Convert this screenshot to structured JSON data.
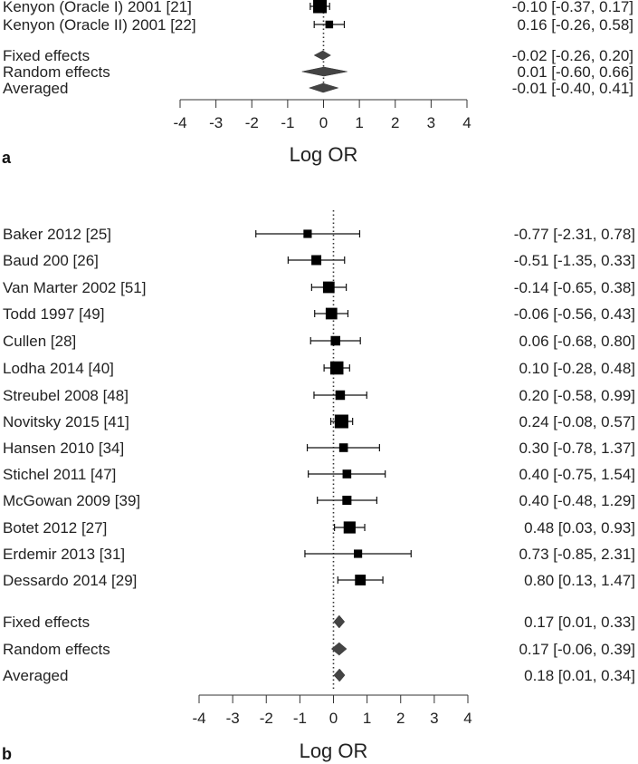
{
  "chart_data": [
    {
      "type": "forest",
      "panel_label": "a",
      "xlabel": "Log OR",
      "xlim": [
        -4,
        4
      ],
      "xticks": [
        -4,
        -3,
        -2,
        -1,
        0,
        1,
        2,
        3,
        4
      ],
      "reference_line": 0,
      "studies": [
        {
          "label": "Kenyon (Oracle I) 2001 [21]",
          "estimate": -0.1,
          "lower": -0.37,
          "upper": 0.17,
          "ci_text": "-0.10 [-0.37, 0.17]",
          "weight": 1.0
        },
        {
          "label": "Kenyon (Oracle II) 2001 [22]",
          "estimate": 0.16,
          "lower": -0.26,
          "upper": 0.58,
          "ci_text": "0.16 [-0.26, 0.58]",
          "weight": 0.35
        }
      ],
      "summaries": [
        {
          "label": "Fixed effects",
          "estimate": -0.02,
          "lower": -0.26,
          "upper": 0.2,
          "ci_text": "-0.02 [-0.26, 0.20]"
        },
        {
          "label": "Random effects",
          "estimate": 0.01,
          "lower": -0.6,
          "upper": 0.66,
          "ci_text": "0.01 [-0.60, 0.66]"
        },
        {
          "label": "Averaged",
          "estimate": -0.01,
          "lower": -0.4,
          "upper": 0.41,
          "ci_text": "-0.01 [-0.40, 0.41]"
        }
      ]
    },
    {
      "type": "forest",
      "panel_label": "b",
      "xlabel": "Log OR",
      "xlim": [
        -4,
        4
      ],
      "xticks": [
        -4,
        -3,
        -2,
        -1,
        0,
        1,
        2,
        3,
        4
      ],
      "reference_line": 0,
      "studies": [
        {
          "label": "Baker 2012 [25]",
          "estimate": -0.77,
          "lower": -2.31,
          "upper": 0.78,
          "ci_text": "-0.77 [-2.31, 0.78]",
          "weight": 0.35
        },
        {
          "label": "Baud 200 [26]",
          "estimate": -0.51,
          "lower": -1.35,
          "upper": 0.33,
          "ci_text": "-0.51 [-1.35, 0.33]",
          "weight": 0.55
        },
        {
          "label": "Van Marter 2002 [51]",
          "estimate": -0.14,
          "lower": -0.65,
          "upper": 0.38,
          "ci_text": "-0.14 [-0.65, 0.38]",
          "weight": 0.75
        },
        {
          "label": "Todd 1997 [49]",
          "estimate": -0.06,
          "lower": -0.56,
          "upper": 0.43,
          "ci_text": "-0.06 [-0.56, 0.43]",
          "weight": 0.75
        },
        {
          "label": "Cullen [28]",
          "estimate": 0.06,
          "lower": -0.68,
          "upper": 0.8,
          "ci_text": "0.06 [-0.68, 0.80]",
          "weight": 0.5
        },
        {
          "label": "Lodha 2014 [40]",
          "estimate": 0.1,
          "lower": -0.28,
          "upper": 0.48,
          "ci_text": "0.10 [-0.28, 0.48]",
          "weight": 0.95
        },
        {
          "label": "Streubel 2008 [48]",
          "estimate": 0.2,
          "lower": -0.58,
          "upper": 0.99,
          "ci_text": "0.20 [-0.58, 0.99]",
          "weight": 0.5
        },
        {
          "label": "Novitsky 2015 [41]",
          "estimate": 0.24,
          "lower": -0.08,
          "upper": 0.57,
          "ci_text": "0.24 [-0.08, 0.57]",
          "weight": 1.0
        },
        {
          "label": "Hansen 2010 [34]",
          "estimate": 0.3,
          "lower": -0.78,
          "upper": 1.37,
          "ci_text": "0.30 [-0.78, 1.37]",
          "weight": 0.4
        },
        {
          "label": "Stichel 2011 [47]",
          "estimate": 0.4,
          "lower": -0.75,
          "upper": 1.54,
          "ci_text": "0.40 [-0.75, 1.54]",
          "weight": 0.4
        },
        {
          "label": "McGowan 2009 [39]",
          "estimate": 0.4,
          "lower": -0.48,
          "upper": 1.29,
          "ci_text": "0.40 [-0.48, 1.29]",
          "weight": 0.45
        },
        {
          "label": "Botet 2012 [27]",
          "estimate": 0.48,
          "lower": 0.03,
          "upper": 0.93,
          "ci_text": "0.48 [0.03, 0.93]",
          "weight": 0.8
        },
        {
          "label": "Erdemir 2013 [31]",
          "estimate": 0.73,
          "lower": -0.85,
          "upper": 2.31,
          "ci_text": "0.73 [-0.85, 2.31]",
          "weight": 0.35
        },
        {
          "label": "Dessardo 2014 [29]",
          "estimate": 0.8,
          "lower": 0.13,
          "upper": 1.47,
          "ci_text": "0.80 [0.13, 1.47]",
          "weight": 0.65
        }
      ],
      "summaries": [
        {
          "label": "Fixed effects",
          "estimate": 0.17,
          "lower": 0.01,
          "upper": 0.33,
          "ci_text": "0.17 [0.01, 0.33]"
        },
        {
          "label": "Random effects",
          "estimate": 0.17,
          "lower": -0.06,
          "upper": 0.39,
          "ci_text": "0.17 [-0.06, 0.39]"
        },
        {
          "label": "Averaged",
          "estimate": 0.18,
          "lower": 0.01,
          "upper": 0.34,
          "ci_text": "0.18 [0.01, 0.34]"
        }
      ]
    }
  ]
}
